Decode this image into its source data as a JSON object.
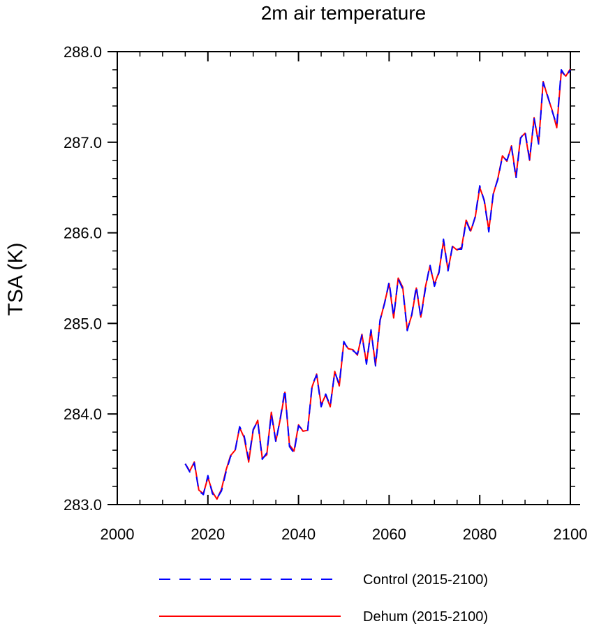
{
  "chart_data": {
    "type": "line",
    "title": "2m air temperature",
    "xlabel": "",
    "ylabel": "TSA  (K)",
    "xlim": [
      2000,
      2100
    ],
    "ylim": [
      283.0,
      288.0
    ],
    "x_ticks": [
      2000,
      2020,
      2040,
      2060,
      2080,
      2100
    ],
    "x_tick_labels": [
      "2000",
      "2020",
      "2040",
      "2060",
      "2080",
      "2100"
    ],
    "y_ticks": [
      283.0,
      284.0,
      285.0,
      286.0,
      287.0,
      288.0
    ],
    "y_tick_labels": [
      "283.0",
      "284.0",
      "285.0",
      "286.0",
      "287.0",
      "288.0"
    ],
    "grid": false,
    "legend_position": "bottom",
    "x": [
      2015,
      2016,
      2017,
      2018,
      2019,
      2020,
      2021,
      2022,
      2023,
      2024,
      2025,
      2026,
      2027,
      2028,
      2029,
      2030,
      2031,
      2032,
      2033,
      2034,
      2035,
      2036,
      2037,
      2038,
      2039,
      2040,
      2041,
      2042,
      2043,
      2044,
      2045,
      2046,
      2047,
      2048,
      2049,
      2050,
      2051,
      2052,
      2053,
      2054,
      2055,
      2056,
      2057,
      2058,
      2059,
      2060,
      2061,
      2062,
      2063,
      2064,
      2065,
      2066,
      2067,
      2068,
      2069,
      2070,
      2071,
      2072,
      2073,
      2074,
      2075,
      2076,
      2077,
      2078,
      2079,
      2080,
      2081,
      2082,
      2083,
      2084,
      2085,
      2086,
      2087,
      2088,
      2089,
      2090,
      2091,
      2092,
      2093,
      2094,
      2095,
      2096,
      2097,
      2098,
      2099,
      2100
    ],
    "series": [
      {
        "name": "Control (2015-2100)",
        "color": "#0000ff",
        "style": "dashed",
        "values": [
          283.45,
          283.36,
          283.46,
          283.15,
          283.11,
          283.32,
          283.12,
          283.07,
          283.15,
          283.36,
          283.53,
          283.59,
          283.86,
          283.76,
          283.5,
          283.83,
          283.92,
          283.5,
          283.57,
          284.0,
          283.69,
          283.96,
          284.27,
          283.64,
          283.57,
          283.87,
          283.82,
          283.81,
          284.32,
          284.43,
          284.08,
          284.22,
          284.09,
          284.46,
          284.33,
          284.8,
          284.71,
          284.7,
          284.66,
          284.87,
          284.55,
          284.93,
          284.53,
          285.04,
          285.22,
          285.46,
          285.08,
          285.49,
          285.38,
          284.92,
          285.1,
          285.41,
          285.06,
          285.38,
          285.65,
          285.41,
          285.56,
          285.93,
          285.58,
          285.86,
          285.82,
          285.82,
          286.13,
          286.01,
          286.18,
          286.52,
          286.35,
          286.01,
          286.44,
          286.59,
          286.84,
          286.8,
          286.95,
          286.6,
          287.04,
          287.12,
          286.81,
          287.26,
          286.98,
          287.66,
          287.51,
          287.34,
          287.19,
          287.8,
          287.72,
          287.8
        ]
      },
      {
        "name": "Dehum (2015-2100)",
        "color": "#ff0000",
        "style": "solid",
        "values": [
          283.45,
          283.37,
          283.47,
          283.16,
          283.12,
          283.3,
          283.14,
          283.06,
          283.17,
          283.38,
          283.54,
          283.6,
          283.85,
          283.74,
          283.47,
          283.82,
          283.93,
          283.51,
          283.55,
          284.02,
          283.7,
          283.95,
          284.24,
          283.66,
          283.59,
          283.88,
          283.81,
          283.82,
          284.3,
          284.44,
          284.1,
          284.21,
          284.08,
          284.47,
          284.31,
          284.79,
          284.72,
          284.71,
          284.65,
          284.88,
          284.56,
          284.92,
          284.54,
          285.03,
          285.23,
          285.44,
          285.06,
          285.5,
          285.4,
          284.93,
          285.09,
          285.39,
          285.07,
          285.4,
          285.63,
          285.43,
          285.57,
          285.91,
          285.59,
          285.85,
          285.81,
          285.84,
          286.14,
          286.02,
          286.17,
          286.5,
          286.36,
          286.03,
          286.43,
          286.6,
          286.85,
          286.79,
          286.96,
          286.62,
          287.05,
          287.1,
          286.8,
          287.27,
          286.99,
          287.67,
          287.5,
          287.35,
          287.16,
          287.78,
          287.73,
          287.81
        ]
      }
    ]
  }
}
